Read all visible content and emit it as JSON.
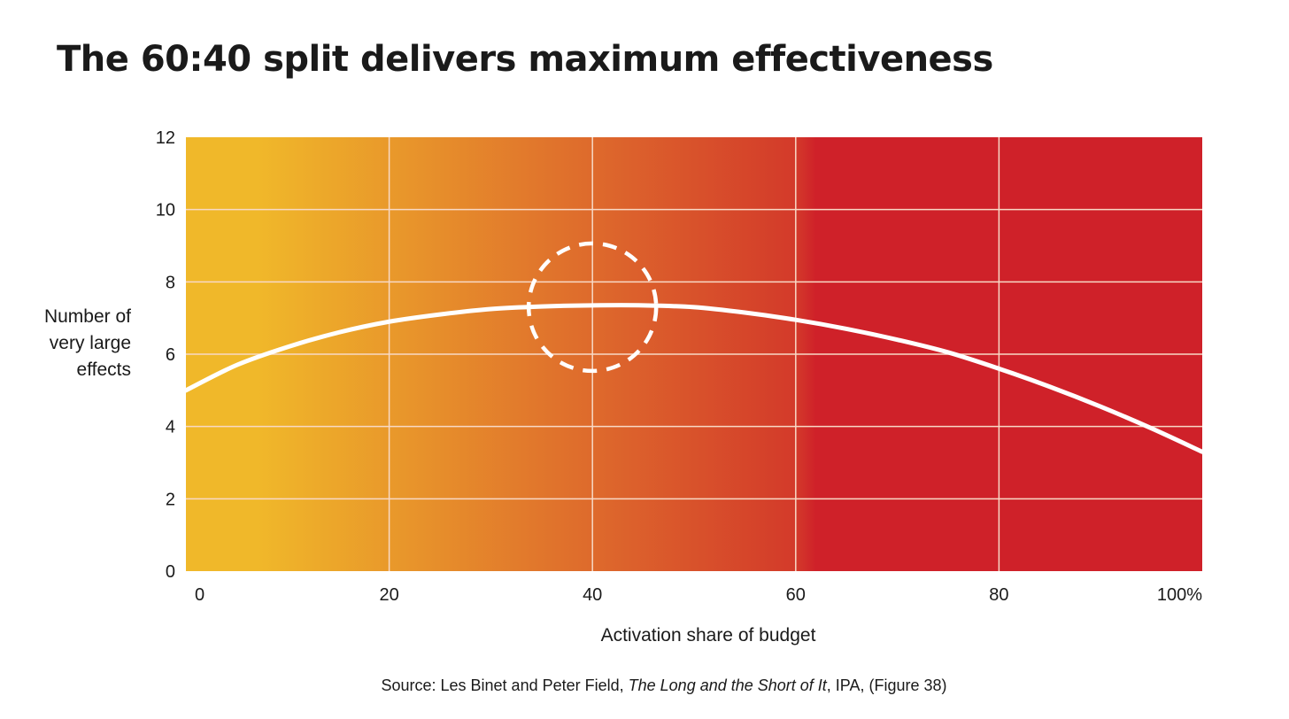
{
  "title": "The 60:40 split delivers maximum effectiveness",
  "source": {
    "prefix": "Source: Les Binet and Peter Field, ",
    "book": "The Long and the Short of It",
    "suffix": ", IPA, (Figure 38)"
  },
  "colors": {
    "gradient_start": "#F0B82A",
    "gradient_mid": "#DE6A2C",
    "gradient_end": "#CF2129",
    "curve": "#ffffff",
    "grid": "#F8D9C6"
  },
  "chart_data": {
    "type": "line",
    "title": "The 60:40 split delivers maximum effectiveness",
    "xlabel": "Activation share of budget",
    "ylabel_lines": [
      "Number of",
      "very large",
      "effects"
    ],
    "xlim": [
      0,
      100
    ],
    "ylim": [
      0,
      12
    ],
    "x_ticks": [
      0,
      20,
      40,
      60,
      80,
      100
    ],
    "x_tick_labels": [
      "0",
      "20",
      "40",
      "60",
      "80",
      "100%"
    ],
    "y_ticks": [
      0,
      2,
      4,
      6,
      8,
      10,
      12
    ],
    "y_tick_labels": [
      "0",
      "2",
      "4",
      "6",
      "8",
      "10",
      "12"
    ],
    "grid": true,
    "series": [
      {
        "name": "Number of very large effects",
        "x": [
          0,
          5,
          10,
          15,
          20,
          25,
          30,
          35,
          40,
          45,
          50,
          55,
          60,
          65,
          70,
          75,
          80,
          85,
          90,
          95,
          100
        ],
        "y": [
          5.0,
          5.7,
          6.2,
          6.6,
          6.9,
          7.1,
          7.25,
          7.32,
          7.35,
          7.35,
          7.3,
          7.15,
          6.95,
          6.7,
          6.4,
          6.05,
          5.6,
          5.1,
          4.55,
          3.95,
          3.3
        ]
      }
    ],
    "highlight": {
      "type": "dashed-circle",
      "center": [
        40,
        7.3
      ],
      "label": ""
    }
  }
}
